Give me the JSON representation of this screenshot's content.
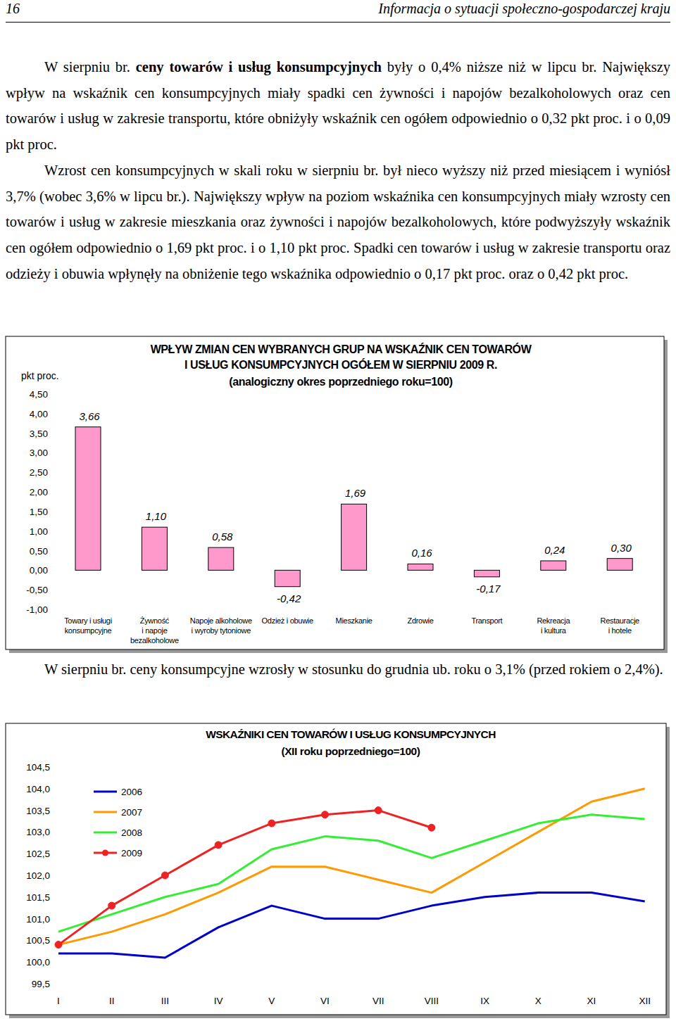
{
  "header": {
    "page": "16",
    "title": "Informacja o sytuacji społeczno-gospodarczej kraju"
  },
  "paragraphs": [
    {
      "runs": [
        {
          "text": "W sierpniu br. "
        },
        {
          "text": "ceny towarów i usług konsumpcyjnych",
          "bold": true
        },
        {
          "text": " były o 0,4% niższe niż w lipcu br. Największy wpływ na wskaźnik cen konsumpcyjnych miały spadki cen żywności i napojów bezalkoholowych oraz cen towarów i usług w zakresie transportu, które obniżyły wskaźnik cen ogółem odpowiednio o 0,32 pkt proc. i o 0,09 pkt proc."
        }
      ]
    },
    {
      "runs": [
        {
          "text": "Wzrost cen konsumpcyjnych w skali roku w sierpniu br. był nieco wyższy niż przed miesiącem i wyniósł 3,7% (wobec 3,6% w lipcu br.). Największy wpływ na poziom wskaźnika cen konsumpcyjnych miały wzrosty cen towarów i usług w zakresie mieszkania oraz żywności i napojów bezalkoholowych, które podwyższyły wskaźnik cen ogółem odpowiednio o 1,69 pkt proc. i o 1,10 pkt proc. Spadki cen towarów i usług w zakresie transportu oraz odzieży i obuwia wpłynęły na obniżenie tego wskaźnika odpowiednio o 0,17 pkt proc. oraz o 0,42 pkt proc."
        }
      ]
    },
    {
      "runs": [
        {
          "text": "W sierpniu br. ceny konsumpcyjne wzrosły w stosunku do grudnia ub. roku o 3,1% (przed rokiem o 2,4%)."
        }
      ]
    }
  ],
  "chart_data": [
    {
      "type": "bar",
      "title": [
        "WPŁYW ZMIAN CEN WYBRANYCH GRUP NA WSKAŹNIK CEN TOWARÓW",
        "I USŁUG KONSUMPCYJNYCH OGÓŁEM W SIERPNIU 2009 R."
      ],
      "subtitle": "(analogiczny okres poprzedniego roku=100)",
      "ylabel": "pkt proc.",
      "categories": [
        "Towary i usługi\nkonsumpcyjne",
        "Żywność\ni napoje\nbezalkoholowe",
        "Napoje alkoholowe\ni wyroby tytoniowe",
        "Odzież i obuwie",
        "Mieszkanie",
        "Zdrowie",
        "Transport",
        "Rekreacja\ni kultura",
        "Restauracje\ni hotele"
      ],
      "values": [
        3.66,
        1.1,
        0.58,
        -0.42,
        1.69,
        0.16,
        -0.17,
        0.24,
        0.3
      ],
      "value_labels": [
        "3,66",
        "1,10",
        "0,58",
        "-0,42",
        "1,69",
        "0,16",
        "-0,17",
        "0,24",
        "0,30"
      ],
      "data_labels": true,
      "color": "#ff99cc",
      "grid": false,
      "ylim": [
        -1,
        4.5
      ],
      "yticks": [
        {
          "value": -1,
          "label": "-1,00"
        },
        {
          "value": -0.5,
          "label": "-0,50"
        },
        {
          "value": 0,
          "label": "0,00"
        },
        {
          "value": 0.5,
          "label": "0,50"
        },
        {
          "value": 1,
          "label": "1,00"
        },
        {
          "value": 1.5,
          "label": "1,50"
        },
        {
          "value": 2,
          "label": "2,00"
        },
        {
          "value": 2.5,
          "label": "2,50"
        },
        {
          "value": 3,
          "label": "3,00"
        },
        {
          "value": 3.5,
          "label": "3,50"
        },
        {
          "value": 4,
          "label": "4,00"
        },
        {
          "value": 4.5,
          "label": "4,50"
        }
      ]
    },
    {
      "type": "line",
      "title": "WSKAŹNIKI CEN TOWARÓW I USŁUG KONSUMPCYJNYCH",
      "subtitle": "(XII roku poprzedniego=100)",
      "categories": [
        "I",
        "II",
        "III",
        "IV",
        "V",
        "VI",
        "VII",
        "VIII",
        "IX",
        "X",
        "XI",
        "XII"
      ],
      "series": [
        {
          "name": "2006",
          "color": "#0000cc",
          "values": [
            100.2,
            100.2,
            100.1,
            100.8,
            101.3,
            101.0,
            101.0,
            101.3,
            101.5,
            101.6,
            101.6,
            101.4
          ]
        },
        {
          "name": "2007",
          "color": "#ff9900",
          "values": [
            100.4,
            100.7,
            101.1,
            101.6,
            102.2,
            102.2,
            101.9,
            101.6,
            102.3,
            103.0,
            103.7,
            104.0
          ]
        },
        {
          "name": "2008",
          "color": "#33ee33",
          "values": [
            100.7,
            101.1,
            101.5,
            101.8,
            102.6,
            102.9,
            102.8,
            102.4,
            102.8,
            103.2,
            103.4,
            103.3
          ]
        },
        {
          "name": "2009",
          "color": "#ee2222",
          "marker": "circle",
          "values": [
            100.4,
            101.3,
            102.0,
            102.7,
            103.2,
            103.4,
            103.5,
            103.1,
            null,
            null,
            null,
            null
          ]
        }
      ],
      "legend": "upper left",
      "grid": false,
      "ylim": [
        99.5,
        104.5
      ],
      "yticks": [
        {
          "value": 99.5,
          "label": "99,5"
        },
        {
          "value": 100,
          "label": "100,0"
        },
        {
          "value": 100.5,
          "label": "100,5"
        },
        {
          "value": 101,
          "label": "101,0"
        },
        {
          "value": 101.5,
          "label": "101,5"
        },
        {
          "value": 102,
          "label": "102,0"
        },
        {
          "value": 102.5,
          "label": "102,5"
        },
        {
          "value": 103,
          "label": "103,0"
        },
        {
          "value": 103.5,
          "label": "103,5"
        },
        {
          "value": 104,
          "label": "104,0"
        },
        {
          "value": 104.5,
          "label": "104,5"
        }
      ]
    }
  ]
}
